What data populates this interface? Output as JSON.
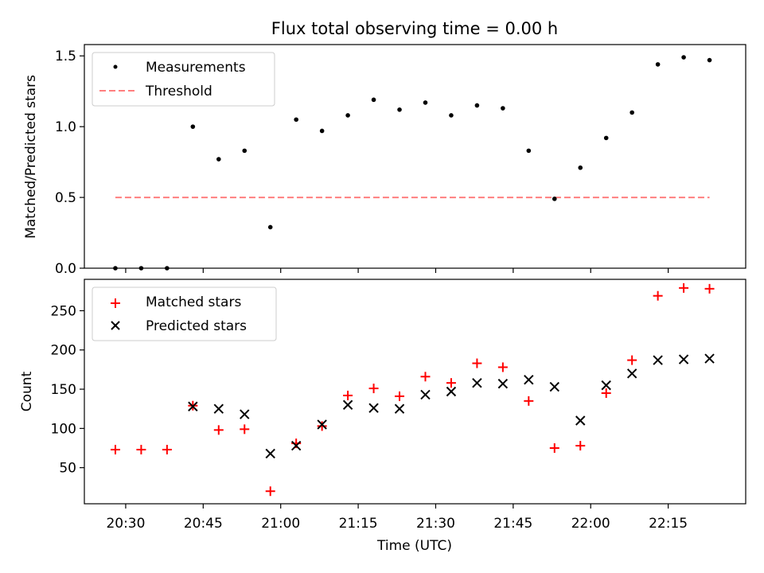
{
  "chart_data": [
    {
      "type": "scatter",
      "title": "Flux total observing time = 0.00 h",
      "ylabel": "Matched/Predicted stars",
      "xlabel": "",
      "ylim": [
        0,
        1.58
      ],
      "yticks": [
        0.0,
        0.5,
        1.0,
        1.5
      ],
      "ytick_labels": [
        "0.0",
        "0.5",
        "1.0",
        "1.5"
      ],
      "legend_position": "top-left",
      "series": [
        {
          "name": "Measurements",
          "marker": "dot",
          "color": "#000000",
          "x": [
            "20:28",
            "20:33",
            "20:38",
            "20:43",
            "20:48",
            "20:53",
            "20:58",
            "21:03",
            "21:08",
            "21:13",
            "21:18",
            "21:23",
            "21:28",
            "21:33",
            "21:38",
            "21:43",
            "21:48",
            "21:53",
            "21:58",
            "22:03",
            "22:08",
            "22:13",
            "22:18",
            "22:23"
          ],
          "y": [
            0.0,
            0.0,
            0.0,
            1.0,
            0.77,
            0.83,
            0.29,
            1.05,
            0.97,
            1.08,
            1.19,
            1.12,
            1.17,
            1.08,
            1.15,
            1.13,
            0.83,
            0.49,
            0.71,
            0.92,
            1.1,
            1.44,
            1.49,
            1.47
          ]
        },
        {
          "name": "Threshold",
          "marker": "dashed-line",
          "color": "#ff7f7f",
          "x": [
            "20:28",
            "22:23"
          ],
          "y": [
            0.5,
            0.5
          ]
        }
      ]
    },
    {
      "type": "scatter",
      "title": "",
      "ylabel": "Count",
      "xlabel": "Time (UTC)",
      "ylim": [
        4,
        290
      ],
      "yticks": [
        50,
        100,
        150,
        200,
        250
      ],
      "ytick_labels": [
        "50",
        "100",
        "150",
        "200",
        "250"
      ],
      "xlim": [
        "20:22",
        "22:30"
      ],
      "xticks": [
        "20:30",
        "20:45",
        "21:00",
        "21:15",
        "21:30",
        "21:45",
        "22:00",
        "22:15"
      ],
      "legend_position": "top-left",
      "series": [
        {
          "name": "Matched stars",
          "marker": "plus",
          "color": "#ff0000",
          "x": [
            "20:28",
            "20:33",
            "20:38",
            "20:43",
            "20:48",
            "20:53",
            "20:58",
            "21:03",
            "21:08",
            "21:13",
            "21:18",
            "21:23",
            "21:28",
            "21:33",
            "21:38",
            "21:43",
            "21:48",
            "21:53",
            "21:58",
            "22:03",
            "22:08",
            "22:13",
            "22:18",
            "22:23"
          ],
          "y": [
            73,
            73,
            73,
            129,
            98,
            99,
            20,
            81,
            103,
            142,
            151,
            141,
            166,
            158,
            183,
            178,
            135,
            75,
            78,
            145,
            187,
            269,
            279,
            278
          ]
        },
        {
          "name": "Predicted stars",
          "marker": "x",
          "color": "#000000",
          "x": [
            "20:43",
            "20:48",
            "20:53",
            "20:58",
            "21:03",
            "21:08",
            "21:13",
            "21:18",
            "21:23",
            "21:28",
            "21:33",
            "21:38",
            "21:43",
            "21:48",
            "21:53",
            "21:58",
            "22:03",
            "22:08",
            "22:13",
            "22:18",
            "22:23"
          ],
          "y": [
            128,
            125,
            118,
            68,
            78,
            105,
            130,
            126,
            125,
            143,
            147,
            158,
            157,
            162,
            153,
            110,
            155,
            170,
            187,
            188,
            189
          ]
        }
      ]
    }
  ]
}
